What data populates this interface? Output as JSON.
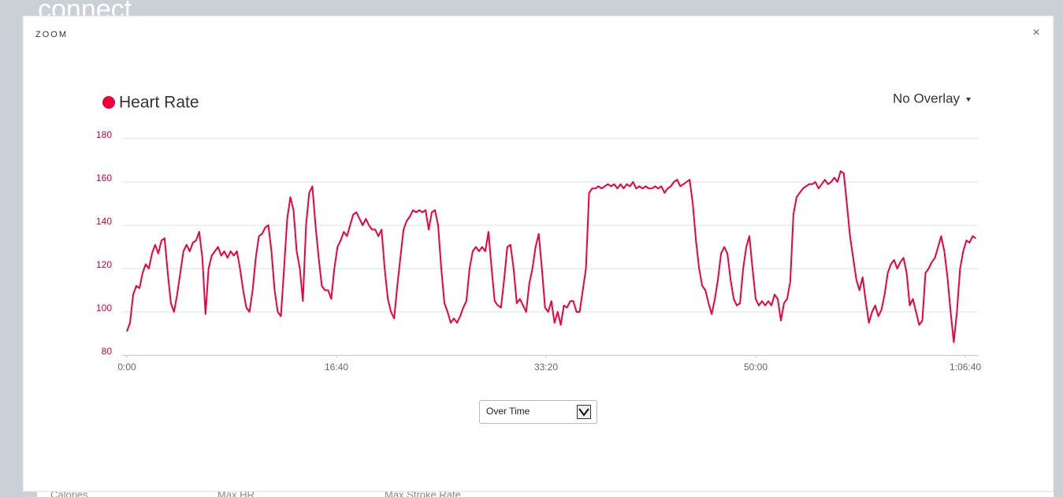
{
  "background": {
    "brand": "connect",
    "stats": [
      "Calories",
      "Max HR",
      "Max Stroke Rate"
    ]
  },
  "modal": {
    "title": "ZOOM",
    "close": "×",
    "overlay": "No Overlay",
    "view": "Over Time"
  },
  "chart_data": {
    "type": "line",
    "series": [
      {
        "name": "Heart Rate",
        "color": "#f0003c",
        "x": [
          0,
          15,
          30,
          45,
          60,
          75,
          90,
          105,
          120,
          135,
          150,
          165,
          180,
          195,
          210,
          225,
          240,
          255,
          270,
          285,
          300,
          315,
          330,
          345,
          360,
          375,
          390,
          405,
          420,
          435,
          450,
          465,
          480,
          495,
          510,
          525,
          540,
          555,
          570,
          585,
          600,
          615,
          630,
          645,
          660,
          675,
          690,
          705,
          720,
          735,
          750,
          765,
          780,
          795,
          810,
          825,
          840,
          855,
          870,
          885,
          900,
          915,
          930,
          945,
          960,
          975,
          990,
          1005,
          1020,
          1035,
          1050,
          1065,
          1080,
          1095,
          1110,
          1125,
          1140,
          1155,
          1170,
          1185,
          1200,
          1215,
          1230,
          1245,
          1260,
          1275,
          1290,
          1305,
          1320,
          1335,
          1350,
          1365,
          1380,
          1395,
          1410,
          1425,
          1440,
          1455,
          1470,
          1485,
          1500,
          1515,
          1530,
          1545,
          1560,
          1575,
          1590,
          1605,
          1620,
          1635,
          1650,
          1665,
          1680,
          1695,
          1710,
          1725,
          1740,
          1755,
          1770,
          1785,
          1800,
          1815,
          1830,
          1845,
          1860,
          1875,
          1890,
          1905,
          1920,
          1935,
          1950,
          1965,
          1980,
          1995,
          2010,
          2025,
          2040,
          2055,
          2070,
          2085,
          2100,
          2115,
          2130,
          2145,
          2160,
          2175,
          2190,
          2205,
          2220,
          2235,
          2250,
          2265,
          2280,
          2295,
          2310,
          2325,
          2340,
          2355,
          2370,
          2385,
          2400,
          2415,
          2430,
          2445,
          2460,
          2475,
          2490,
          2505,
          2520,
          2535,
          2550,
          2565,
          2580,
          2595,
          2610,
          2625,
          2640,
          2655,
          2670,
          2685,
          2700,
          2715,
          2730,
          2745,
          2760,
          2775,
          2790,
          2805,
          2820,
          2835,
          2850,
          2865,
          2880,
          2895,
          2910,
          2925,
          2940,
          2955,
          2970,
          2985,
          3000,
          3015,
          3030,
          3045,
          3060,
          3075,
          3090,
          3105,
          3120,
          3135,
          3150,
          3165,
          3180,
          3195,
          3210,
          3225,
          3240,
          3255,
          3270,
          3285,
          3300,
          3315,
          3330,
          3345,
          3360,
          3375,
          3390,
          3405,
          3420,
          3435,
          3450,
          3465,
          3480,
          3495,
          3510,
          3525,
          3540,
          3555,
          3570,
          3585,
          3600,
          3615,
          3630,
          3645,
          3660,
          3675,
          3690,
          3705,
          3720,
          3735,
          3750,
          3765,
          3780,
          3795,
          3810,
          3825,
          3840,
          3855,
          3870,
          3885,
          3900,
          3915,
          3930,
          3945,
          3960,
          3975,
          3990,
          4005,
          4020,
          4035,
          4050
        ],
        "values": [
          91,
          95,
          108,
          112,
          111,
          118,
          122,
          120,
          127,
          131,
          127,
          133,
          134,
          118,
          104,
          100,
          108,
          118,
          128,
          131,
          128,
          132,
          133,
          137,
          125,
          99,
          120,
          126,
          128,
          130,
          126,
          128,
          125,
          128,
          126,
          128,
          120,
          110,
          102,
          100,
          110,
          125,
          135,
          136,
          139,
          140,
          128,
          110,
          100,
          98,
          120,
          143,
          153,
          147,
          128,
          120,
          105,
          140,
          155,
          158,
          140,
          125,
          112,
          110,
          110,
          106,
          120,
          130,
          133,
          137,
          135,
          140,
          145,
          146,
          143,
          140,
          143,
          140,
          138,
          138,
          135,
          138,
          120,
          106,
          100,
          97,
          112,
          125,
          138,
          142,
          144,
          147,
          146,
          147,
          146,
          147,
          138,
          146,
          147,
          140,
          120,
          104,
          100,
          95,
          97,
          95,
          98,
          102,
          105,
          120,
          128,
          130,
          128,
          130,
          128,
          137,
          120,
          105,
          103,
          102,
          115,
          130,
          131,
          120,
          104,
          106,
          103,
          100,
          113,
          120,
          130,
          136,
          120,
          102,
          100,
          105,
          95,
          100,
          94,
          103,
          102,
          105,
          105,
          100,
          100,
          110,
          120,
          155,
          157,
          157,
          158,
          157,
          158,
          159,
          158,
          159,
          157,
          159,
          157,
          159,
          158,
          160,
          157,
          158,
          157,
          158,
          157,
          157,
          158,
          157,
          158,
          155,
          157,
          158,
          160,
          161,
          158,
          159,
          160,
          161,
          150,
          133,
          120,
          112,
          110,
          104,
          99,
          106,
          115,
          127,
          130,
          127,
          115,
          106,
          103,
          104,
          120,
          130,
          135,
          120,
          106,
          103,
          105,
          103,
          105,
          103,
          108,
          106,
          96,
          104,
          106,
          114,
          145,
          153,
          155,
          157,
          158,
          159,
          159,
          160,
          157,
          159,
          161,
          159,
          160,
          162,
          160,
          165,
          164,
          150,
          135,
          125,
          115,
          110,
          116,
          105,
          95,
          100,
          103,
          98,
          101,
          108,
          118,
          122,
          124,
          120,
          123,
          125,
          118,
          103,
          106,
          100,
          94,
          96,
          118,
          120,
          123,
          125,
          130,
          135,
          128,
          116,
          100,
          86,
          100,
          120,
          128,
          133,
          132,
          135,
          134
        ]
      }
    ],
    "xlim": [
      0,
      4060
    ],
    "xticks": [
      {
        "value": 0,
        "label": "0:00"
      },
      {
        "value": 1000,
        "label": "16:40"
      },
      {
        "value": 2000,
        "label": "33:20"
      },
      {
        "value": 3000,
        "label": "50:00"
      },
      {
        "value": 4000,
        "label": "1:06:40"
      }
    ],
    "ylim": [
      80,
      180
    ],
    "yticks": [
      80,
      100,
      120,
      140,
      160,
      180
    ],
    "grid": true
  }
}
